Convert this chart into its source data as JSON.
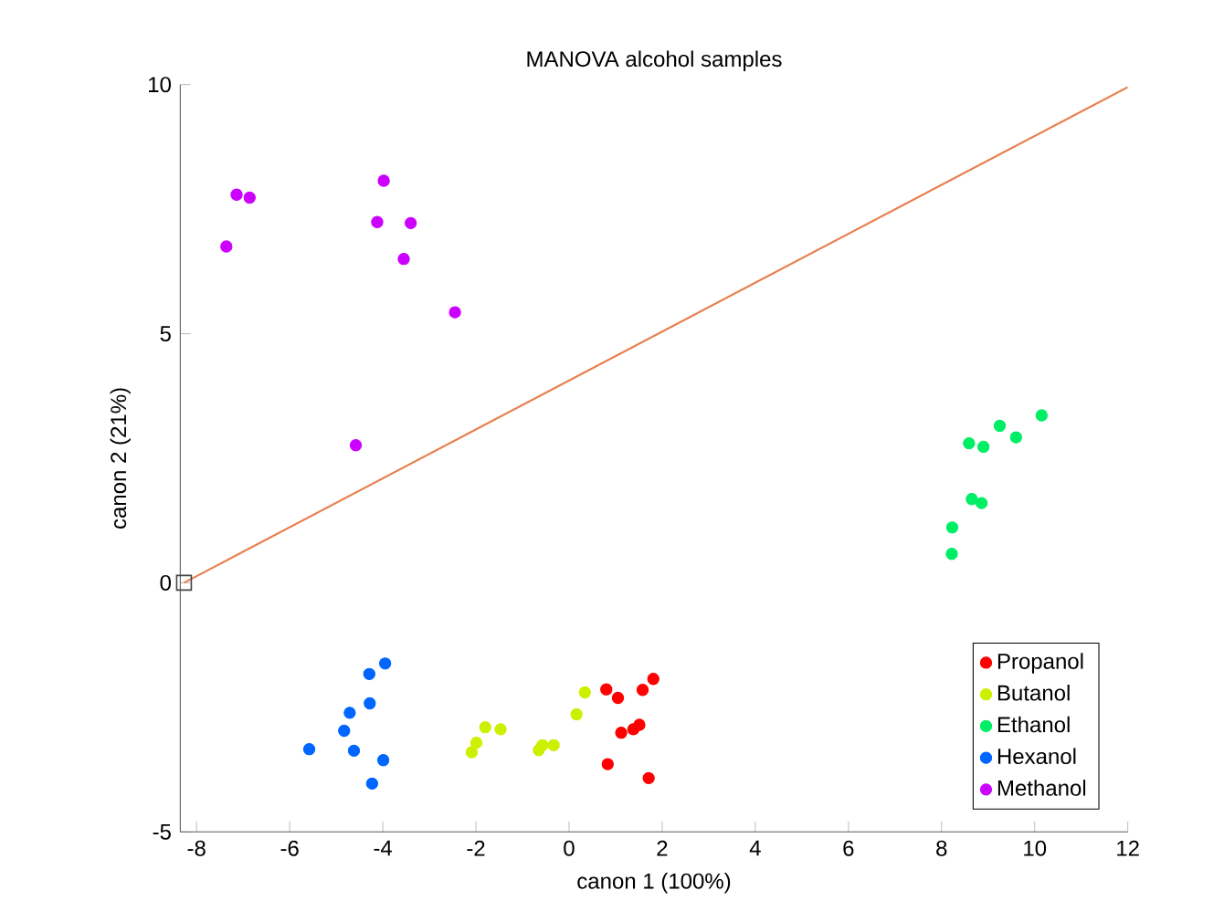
{
  "chart_data": {
    "type": "scatter",
    "title": "MANOVA alcohol samples",
    "xlabel": "canon 1 (100%)",
    "ylabel": "canon 2 (21%)",
    "xlim": [
      -8.35,
      12
    ],
    "ylim": [
      -5,
      10
    ],
    "xticks": [
      -8,
      -6,
      -4,
      -2,
      0,
      2,
      4,
      6,
      8,
      10,
      12
    ],
    "yticks": [
      -5,
      0,
      5,
      10
    ],
    "grid": false,
    "legend": "bottom right",
    "series": [
      {
        "name": "Propanol",
        "color": "#ff0000",
        "marker": "circle",
        "x": [
          0.8,
          1.05,
          1.81,
          1.58,
          1.51,
          1.38,
          1.12,
          0.83,
          1.71
        ],
        "values": [
          -2.14,
          -2.31,
          -1.93,
          -2.15,
          -2.85,
          -2.94,
          -3.01,
          -3.64,
          -3.92
        ]
      },
      {
        "name": "Butanol",
        "color": "#ccf000",
        "marker": "circle",
        "x": [
          0.34,
          0.16,
          -1.8,
          -1.47,
          -1.99,
          -2.09,
          -0.33,
          -0.57,
          -0.65
        ],
        "values": [
          -2.2,
          -2.64,
          -2.9,
          -2.94,
          -3.21,
          -3.4,
          -3.26,
          -3.26,
          -3.36
        ]
      },
      {
        "name": "Ethanol",
        "color": "#00ee66",
        "marker": "circle",
        "x": [
          10.15,
          9.25,
          9.6,
          8.59,
          8.9,
          8.65,
          8.86,
          8.23,
          8.22
        ],
        "values": [
          3.36,
          3.15,
          2.92,
          2.8,
          2.73,
          1.68,
          1.6,
          1.11,
          0.58
        ]
      },
      {
        "name": "Hexanol",
        "color": "#0066ff",
        "marker": "circle",
        "x": [
          -3.95,
          -4.29,
          -4.28,
          -4.71,
          -4.83,
          -5.58,
          -4.62,
          -3.99,
          -4.23
        ],
        "values": [
          -1.62,
          -1.83,
          -2.42,
          -2.61,
          -2.97,
          -3.34,
          -3.37,
          -3.56,
          -4.03
        ]
      },
      {
        "name": "Methanol",
        "color": "#cc00ff",
        "marker": "circle",
        "x": [
          -7.36,
          -7.14,
          -6.86,
          -3.98,
          -4.12,
          -3.4,
          -3.55,
          -2.45,
          -4.58
        ],
        "values": [
          6.75,
          7.79,
          7.73,
          8.07,
          7.24,
          7.22,
          6.5,
          5.43,
          2.76
        ]
      },
      {
        "type": "line",
        "color": "#e8804f",
        "marker": "none",
        "line_style": "solid",
        "x": [
          -8.27,
          12
        ],
        "values": [
          0,
          9.95
        ]
      },
      {
        "type": "scatter",
        "color": "#444444",
        "marker": "square",
        "x": [
          -8.27
        ],
        "values": [
          0
        ]
      }
    ]
  }
}
